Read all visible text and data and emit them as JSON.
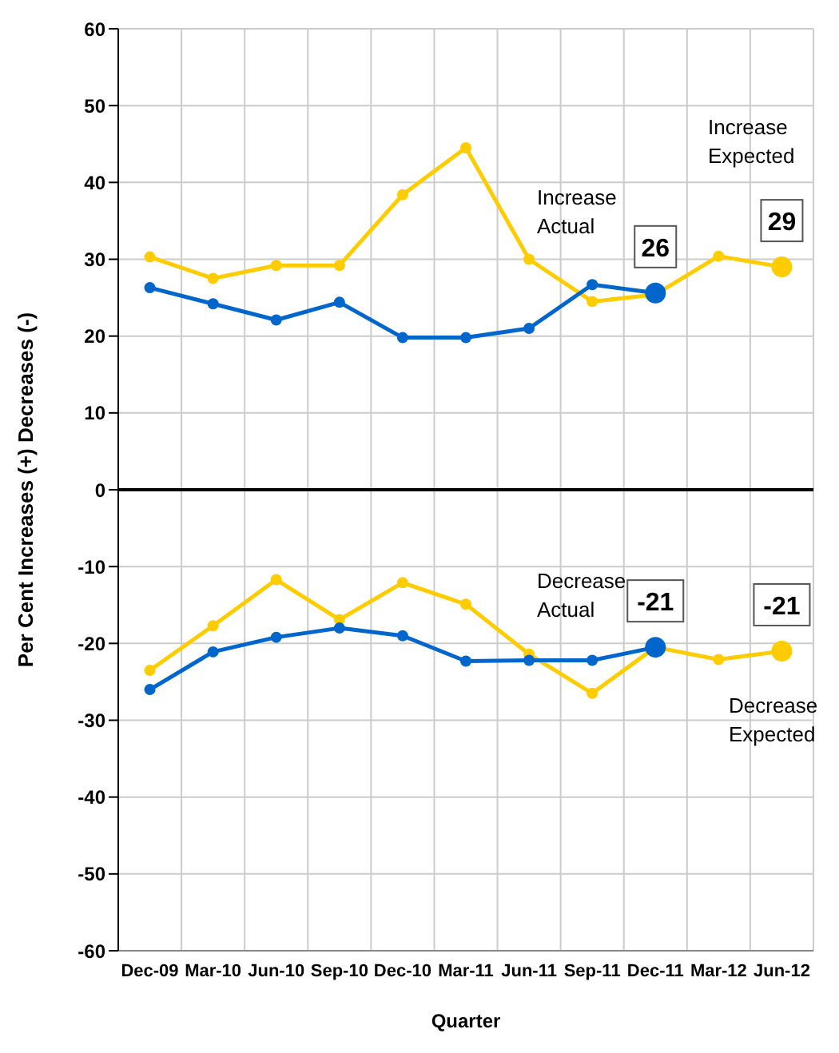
{
  "chart_data": {
    "type": "line",
    "xlabel": "Quarter",
    "ylabel": "Per Cent Increases (+) Decreases (-)",
    "categories": [
      "Dec-09",
      "Mar-10",
      "Jun-10",
      "Sep-10",
      "Dec-10",
      "Mar-11",
      "Jun-11",
      "Sep-11",
      "Dec-11",
      "Mar-12",
      "Jun-12"
    ],
    "series": [
      {
        "color": "#ffcc00",
        "values": [
          30.3,
          27.5,
          29.2,
          29.2,
          38.4,
          44.5,
          30,
          24.5,
          25.4,
          30.4,
          29
        ],
        "value_labels": [
          null,
          null,
          null,
          null,
          null,
          null,
          null,
          null,
          null,
          null,
          "29"
        ]
      },
      {
        "color": "#0066cc",
        "values": [
          26.3,
          24.2,
          22.1,
          24.4,
          19.8,
          19.8,
          21,
          26.7,
          25.6,
          null,
          null
        ],
        "value_labels": [
          null,
          null,
          null,
          null,
          null,
          null,
          null,
          null,
          "26",
          null,
          null
        ]
      },
      {
        "color": "#ffcc00",
        "values": [
          -23.5,
          -17.7,
          -11.7,
          -16.9,
          -12.1,
          -14.9,
          -21.4,
          -26.5,
          -20.5,
          -22.1,
          -21
        ],
        "value_labels": [
          null,
          null,
          null,
          null,
          null,
          null,
          null,
          null,
          null,
          null,
          "-21"
        ]
      },
      {
        "color": "#0066cc",
        "values": [
          -26,
          -21.1,
          -19.2,
          -18,
          -19,
          -22.3,
          -22.2,
          -22.2,
          -20.5,
          null,
          null
        ],
        "value_labels": [
          null,
          null,
          null,
          null,
          null,
          null,
          null,
          null,
          "-21",
          null,
          null
        ]
      }
    ],
    "annotations": [
      "Increase Actual",
      "Increase Expected",
      "Decrease Actual",
      "Decrease Expected"
    ],
    "ref_lines": [
      {
        "axis": "y",
        "value": 0,
        "color": "#000000"
      }
    ],
    "ylim": [
      -60,
      60
    ],
    "yticks": [
      -60,
      -50,
      -40,
      -30,
      -20,
      -10,
      0,
      10,
      20,
      30,
      40,
      50,
      60
    ],
    "grid": true,
    "legend": false,
    "marker": "circle",
    "line_style": "solid"
  }
}
